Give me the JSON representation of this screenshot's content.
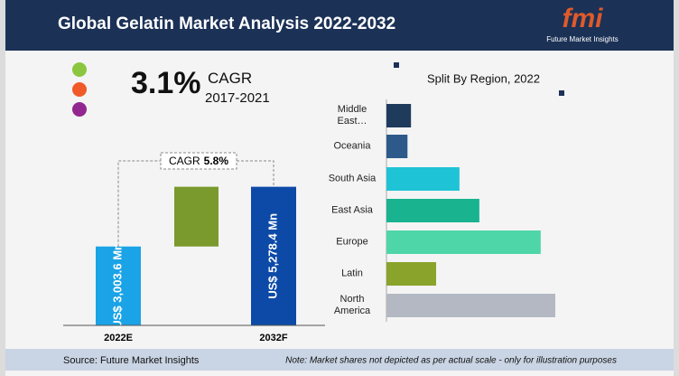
{
  "header": {
    "title": "Global Gelatin Market Analysis 2022-2032",
    "logo": "fmi",
    "logo_caption": "Future Market Insights"
  },
  "chart_data": [
    {
      "type": "bar",
      "stat": "3.1%",
      "stat_label": "CAGR",
      "stat_period": "2017-2021",
      "annotation_label": "CAGR",
      "annotation_value": "5.8%",
      "categories": [
        "2022E",
        "2032F"
      ],
      "values": [
        3003.6,
        5278.4
      ],
      "value_labels": [
        "US$ 3,003.6 Mn",
        "US$ 5,278.4 Mn"
      ],
      "colors": [
        "#1aa3e6",
        "#0d4aa8"
      ],
      "difference_color": "#7a9a2e"
    },
    {
      "type": "hbar",
      "title": "Split By Region, 2022",
      "categories": [
        "Middle East…",
        "Oceania",
        "South Asia",
        "East Asia",
        "Europe",
        "Latin",
        "North America"
      ],
      "values": [
        4.2,
        3.6,
        12.5,
        15.9,
        26.4,
        8.5,
        28.9
      ],
      "colors": [
        "#1f3b5c",
        "#2d5a8a",
        "#1fc3d6",
        "#19b38f",
        "#4fd6a8",
        "#8aa32a",
        "#b3b8c3"
      ]
    }
  ],
  "footer": {
    "source": "Source: Future Market Insights",
    "note": "Note: Market shares not depicted as per actual scale - only for illustration purposes"
  }
}
